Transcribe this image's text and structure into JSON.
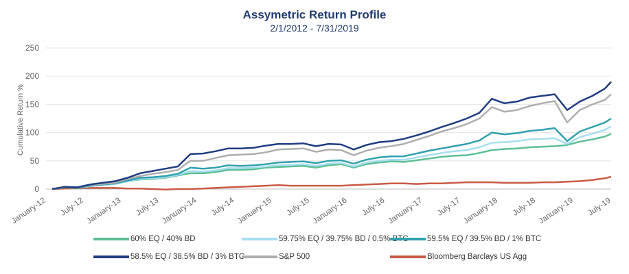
{
  "chart_data": {
    "type": "line",
    "title": "Assymetric Return Profile",
    "subtitle": "2/1/2012 - 7/31/2019",
    "ylabel": "Cumulative Return %",
    "xlabel": "",
    "ylim": [
      0,
      250
    ],
    "yticks": [
      0,
      50,
      100,
      150,
      200,
      250
    ],
    "xticks": [
      "January-12",
      "July-12",
      "January-13",
      "July-13",
      "January-14",
      "July-14",
      "January-15",
      "July-15",
      "January-16",
      "July-16",
      "January-17",
      "July-17",
      "January-18",
      "July-18",
      "January-19",
      "July-19"
    ],
    "grid": true,
    "legend_position": "bottom",
    "x": [
      "Feb-12",
      "Apr-12",
      "Jun-12",
      "Aug-12",
      "Oct-12",
      "Dec-12",
      "Feb-13",
      "Apr-13",
      "Jun-13",
      "Aug-13",
      "Oct-13",
      "Dec-13",
      "Feb-14",
      "Apr-14",
      "Jun-14",
      "Aug-14",
      "Oct-14",
      "Dec-14",
      "Feb-15",
      "Apr-15",
      "Jun-15",
      "Aug-15",
      "Oct-15",
      "Dec-15",
      "Feb-16",
      "Apr-16",
      "Jun-16",
      "Aug-16",
      "Oct-16",
      "Dec-16",
      "Feb-17",
      "Apr-17",
      "Jun-17",
      "Aug-17",
      "Oct-17",
      "Dec-17",
      "Feb-18",
      "Apr-18",
      "Jun-18",
      "Aug-18",
      "Oct-18",
      "Dec-18",
      "Feb-19",
      "Apr-19",
      "Jun-19",
      "Jul-19"
    ],
    "series": [
      {
        "name": "60% EQ / 40% BD",
        "color": "#5cbf95",
        "values": [
          0,
          3,
          2,
          5,
          7,
          9,
          14,
          17,
          18,
          20,
          24,
          28,
          28,
          30,
          34,
          34,
          35,
          38,
          39,
          40,
          41,
          38,
          42,
          44,
          38,
          44,
          47,
          49,
          48,
          51,
          54,
          57,
          59,
          60,
          64,
          69,
          71,
          72,
          74,
          75,
          76,
          78,
          84,
          88,
          93,
          98
        ]
      },
      {
        "name": "59.75% EQ / 39.75% BD / 0.5% BTC",
        "color": "#a6def0",
        "values": [
          0,
          3,
          2,
          5,
          7,
          9,
          14,
          18,
          19,
          21,
          25,
          32,
          31,
          33,
          37,
          37,
          38,
          40,
          42,
          43,
          44,
          41,
          45,
          46,
          40,
          47,
          50,
          52,
          52,
          56,
          60,
          64,
          67,
          69,
          74,
          82,
          83,
          85,
          88,
          89,
          90,
          80,
          92,
          98,
          105,
          111
        ]
      },
      {
        "name": "59.5% EQ / 39.5% BD / 1% BTC",
        "color": "#30a0ad",
        "values": [
          0,
          3,
          2,
          6,
          8,
          10,
          15,
          20,
          21,
          23,
          27,
          38,
          36,
          38,
          42,
          41,
          42,
          44,
          47,
          48,
          49,
          46,
          50,
          51,
          45,
          52,
          56,
          58,
          58,
          63,
          68,
          72,
          76,
          80,
          86,
          100,
          97,
          99,
          103,
          105,
          108,
          85,
          102,
          110,
          118,
          125
        ]
      },
      {
        "name": "58.5% EQ / 38.5% BD / 3% BTC",
        "color": "#1f3c82",
        "values": [
          0,
          4,
          3,
          8,
          11,
          14,
          20,
          28,
          32,
          36,
          40,
          62,
          63,
          67,
          72,
          72,
          73,
          77,
          80,
          80,
          81,
          76,
          80,
          79,
          70,
          78,
          83,
          85,
          89,
          95,
          102,
          110,
          117,
          125,
          135,
          160,
          152,
          155,
          162,
          165,
          168,
          140,
          155,
          165,
          178,
          190
        ]
      },
      {
        "name": "S&P 500",
        "color": "#aeaeae",
        "values": [
          0,
          4,
          3,
          7,
          9,
          11,
          18,
          23,
          27,
          30,
          34,
          50,
          50,
          55,
          60,
          61,
          62,
          65,
          70,
          71,
          72,
          66,
          70,
          69,
          60,
          68,
          73,
          76,
          80,
          87,
          94,
          102,
          108,
          115,
          125,
          145,
          137,
          140,
          147,
          152,
          156,
          118,
          140,
          150,
          158,
          168
        ]
      },
      {
        "name": "Bloomberg Barclays US Agg",
        "color": "#c95a44",
        "values": [
          0,
          1,
          1.5,
          2,
          2,
          2,
          1,
          1,
          0,
          -1,
          0,
          0,
          1,
          2,
          3,
          4,
          5,
          6,
          7,
          6,
          6,
          6,
          6,
          6,
          7,
          8,
          9,
          10,
          10,
          9,
          10,
          10,
          11,
          12,
          12,
          12,
          11,
          11,
          11,
          12,
          12,
          13,
          14,
          16,
          19,
          22
        ]
      }
    ]
  }
}
